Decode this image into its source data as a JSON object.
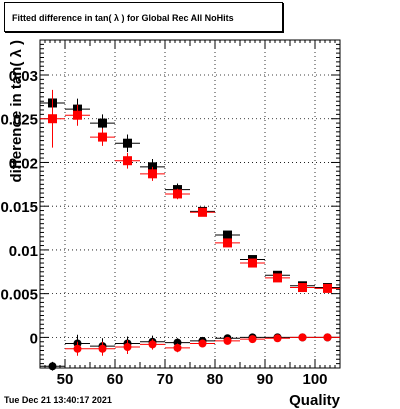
{
  "title": "Fitted difference in tan( λ ) for Global Rec All NoHits",
  "timestamp": "Tue Dec 21 13:40:17 2021",
  "chart_data": {
    "type": "scatter",
    "title": "Fitted difference in tan( λ ) for Global Rec All NoHits",
    "xlabel": "Quality",
    "ylabel": "difference in tan( λ )",
    "xlim": [
      45,
      105
    ],
    "ylim": [
      -0.0035,
      0.034
    ],
    "x_ticks": [
      50,
      60,
      70,
      80,
      90,
      100
    ],
    "y_ticks": [
      0,
      0.005,
      0.01,
      0.015,
      0.02,
      0.025,
      0.03
    ],
    "x_tick_labels": [
      "50",
      "60",
      "70",
      "80",
      "90",
      "100"
    ],
    "y_tick_labels": [
      "0",
      "0.005",
      "0.01",
      "0.015",
      "0.02",
      "0.025",
      "0.03"
    ],
    "grid": true,
    "series": [
      {
        "color": "#000000",
        "marker": "square",
        "points": [
          {
            "x": 47.5,
            "y": 0.0268,
            "err": 0.0008
          },
          {
            "x": 52.5,
            "y": 0.0261,
            "err": 0.0012
          },
          {
            "x": 57.5,
            "y": 0.0245,
            "err": 0.001
          },
          {
            "x": 62.5,
            "y": 0.0222,
            "err": 0.001
          },
          {
            "x": 67.5,
            "y": 0.0195,
            "err": 0.0009
          },
          {
            "x": 72.5,
            "y": 0.0169,
            "err": 0.0007
          },
          {
            "x": 77.5,
            "y": 0.0144,
            "err": 0.0004
          },
          {
            "x": 82.5,
            "y": 0.0117,
            "err": 0.0004
          },
          {
            "x": 87.5,
            "y": 0.0089,
            "err": 0.0004
          },
          {
            "x": 92.5,
            "y": 0.0071,
            "err": 0.0003
          },
          {
            "x": 97.5,
            "y": 0.0059,
            "err": 0.0003
          },
          {
            "x": 102.5,
            "y": 0.0057,
            "err": 0.0003
          }
        ]
      },
      {
        "color": "#ff0000",
        "marker": "square",
        "points": [
          {
            "x": 47.5,
            "y": 0.025,
            "err": 0.0033
          },
          {
            "x": 52.5,
            "y": 0.0254,
            "err": 0.0012
          },
          {
            "x": 57.5,
            "y": 0.0229,
            "err": 0.001
          },
          {
            "x": 62.5,
            "y": 0.0202,
            "err": 0.0009
          },
          {
            "x": 67.5,
            "y": 0.0187,
            "err": 0.0008
          },
          {
            "x": 72.5,
            "y": 0.0164,
            "err": 0.0006
          },
          {
            "x": 77.5,
            "y": 0.0143,
            "err": 0.0004
          },
          {
            "x": 82.5,
            "y": 0.0108,
            "err": 0.0004
          },
          {
            "x": 87.5,
            "y": 0.0085,
            "err": 0.0004
          },
          {
            "x": 92.5,
            "y": 0.0068,
            "err": 0.0003
          },
          {
            "x": 97.5,
            "y": 0.0057,
            "err": 0.0003
          },
          {
            "x": 102.5,
            "y": 0.0056,
            "err": 0.0003
          }
        ]
      },
      {
        "color": "#000000",
        "marker": "circle",
        "points": [
          {
            "x": 47.5,
            "y": -0.0033,
            "err": 0.0005
          },
          {
            "x": 52.5,
            "y": -0.0007,
            "err": 0.001
          },
          {
            "x": 57.5,
            "y": -0.001,
            "err": 0.0009
          },
          {
            "x": 62.5,
            "y": -0.0007,
            "err": 0.0008
          },
          {
            "x": 67.5,
            "y": -0.0005,
            "err": 0.0007
          },
          {
            "x": 72.5,
            "y": -0.0006,
            "err": 0.0005
          },
          {
            "x": 77.5,
            "y": -0.0004,
            "err": 0.0004
          },
          {
            "x": 82.5,
            "y": -0.0001,
            "err": 0.0003
          },
          {
            "x": 87.5,
            "y": 0.0,
            "err": 0.0003
          },
          {
            "x": 92.5,
            "y": 0.0,
            "err": 0.0002
          },
          {
            "x": 97.5,
            "y": 0.0,
            "err": 0.0002
          },
          {
            "x": 102.5,
            "y": 0.0,
            "err": 0.0002
          }
        ]
      },
      {
        "color": "#ff0000",
        "marker": "circle",
        "points": [
          {
            "x": 52.5,
            "y": -0.0013,
            "err": 0.0008
          },
          {
            "x": 57.5,
            "y": -0.0013,
            "err": 0.0008
          },
          {
            "x": 62.5,
            "y": -0.0011,
            "err": 0.0008
          },
          {
            "x": 67.5,
            "y": -0.0008,
            "err": 0.0006
          },
          {
            "x": 72.5,
            "y": -0.0012,
            "err": 0.0005
          },
          {
            "x": 77.5,
            "y": -0.0007,
            "err": 0.0004
          },
          {
            "x": 82.5,
            "y": -0.0004,
            "err": 0.0003
          },
          {
            "x": 87.5,
            "y": -0.0002,
            "err": 0.0003
          },
          {
            "x": 92.5,
            "y": -0.0001,
            "err": 0.0002
          },
          {
            "x": 97.5,
            "y": 0.0,
            "err": 0.0002
          },
          {
            "x": 102.5,
            "y": 0.0,
            "err": 0.0002
          }
        ]
      }
    ]
  }
}
